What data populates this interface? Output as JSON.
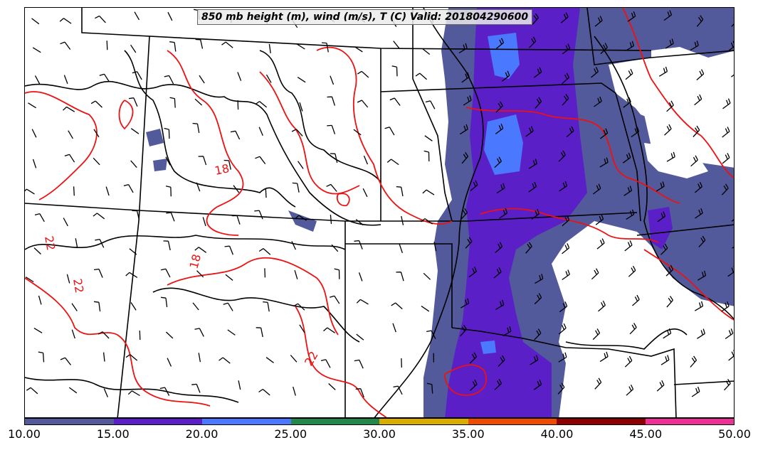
{
  "title": "850 mb height (m), wind (m/s), T (C) Valid: 201804290600",
  "colorbar": {
    "ticks": [
      "10.00",
      "15.00",
      "20.00",
      "25.00",
      "30.00",
      "35.00",
      "40.00",
      "45.00",
      "50.00"
    ],
    "colors": [
      "#525a9c",
      "#5b1fc8",
      "#4a78ff",
      "#22884a",
      "#d9ad00",
      "#ee4a00",
      "#8b0000",
      "#ee2f96"
    ]
  },
  "contour_labels": [
    "18",
    "18",
    "22",
    "22",
    "22"
  ],
  "colors": {
    "wind_10_15": "#525a9c",
    "wind_15_20": "#5b1fc8",
    "wind_20_25": "#4a78ff",
    "temperature_contour": "#ee1111",
    "height_contour": "#000000"
  }
}
